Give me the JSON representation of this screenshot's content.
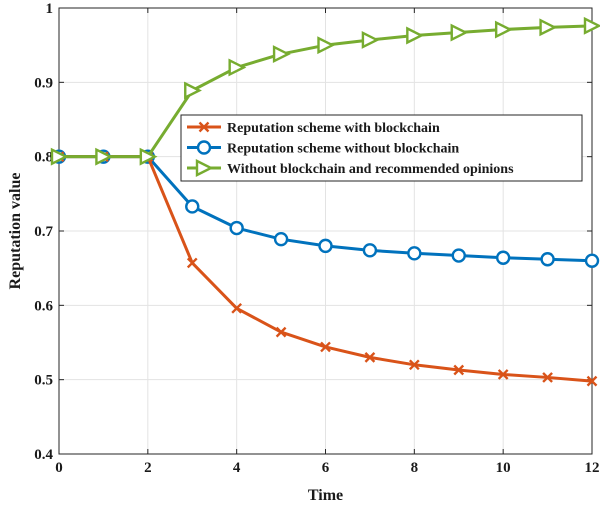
{
  "chart_data": {
    "type": "line",
    "title": "",
    "xlabel": "Time",
    "ylabel": "Reputation value",
    "xlim": [
      0,
      12
    ],
    "ylim": [
      0.4,
      1
    ],
    "x_ticks": [
      0,
      2,
      4,
      6,
      8,
      10,
      12
    ],
    "y_ticks": [
      0.4,
      0.5,
      0.6,
      0.7,
      0.8,
      0.9,
      1
    ],
    "x_tick_labels": [
      "0",
      "2",
      "4",
      "6",
      "8",
      "10",
      "12"
    ],
    "y_tick_labels": [
      "0.4",
      "0.5",
      "0.6",
      "0.7",
      "0.8",
      "0.9",
      "1"
    ],
    "grid": true,
    "legend_position": "upper-center-right",
    "x": [
      0,
      1,
      2,
      3,
      4,
      5,
      6,
      7,
      8,
      9,
      10,
      11,
      12
    ],
    "series": [
      {
        "name": "Reputation scheme with blockchain",
        "color": "#D95319",
        "marker": "x",
        "values": [
          0.8,
          0.8,
          0.8,
          0.657,
          0.596,
          0.564,
          0.544,
          0.53,
          0.52,
          0.513,
          0.507,
          0.503,
          0.498
        ]
      },
      {
        "name": "Reputation scheme without blockchain",
        "color": "#0072BD",
        "marker": "circle",
        "values": [
          0.8,
          0.8,
          0.8,
          0.733,
          0.704,
          0.689,
          0.68,
          0.674,
          0.67,
          0.667,
          0.664,
          0.662,
          0.66
        ]
      },
      {
        "name": "Without blockchain and recommended opinions",
        "color": "#77AC30",
        "marker": "triangle-right",
        "values": [
          0.8,
          0.8,
          0.8,
          0.889,
          0.92,
          0.938,
          0.95,
          0.957,
          0.963,
          0.967,
          0.971,
          0.974,
          0.976
        ]
      }
    ]
  }
}
